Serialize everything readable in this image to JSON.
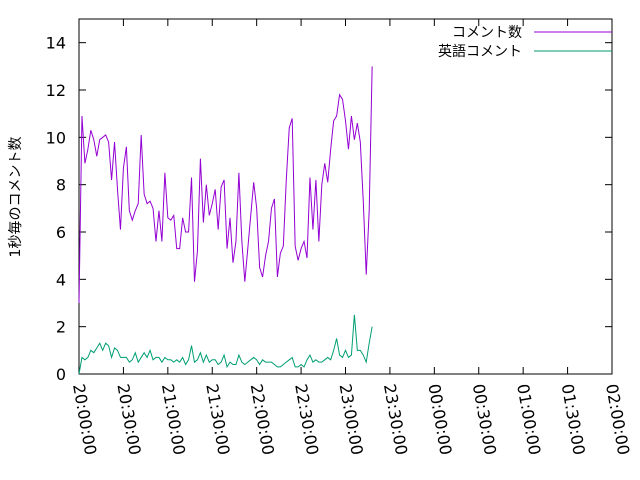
{
  "chart_data": {
    "type": "line",
    "ylabel": "1秒毎のコメント数",
    "xlabel": "",
    "title": "",
    "ylim": [
      0,
      15
    ],
    "xlim": [
      "20:00:00",
      "02:00:00"
    ],
    "y_ticks": [
      0,
      2,
      4,
      6,
      8,
      10,
      12,
      14
    ],
    "x_ticks": [
      "20:00:00",
      "20:30:00",
      "21:00:00",
      "21:30:00",
      "22:00:00",
      "22:30:00",
      "23:00:00",
      "23:30:00",
      "00:00:00",
      "00:30:00",
      "01:00:00",
      "01:30:00",
      "02:00:00"
    ],
    "grid": false,
    "legend_position": "top-right",
    "series": [
      {
        "name": "コメント数",
        "color": "#9400d3",
        "points": [
          [
            "20:00:00",
            3.0
          ],
          [
            "20:02:00",
            10.9
          ],
          [
            "20:04:00",
            8.9
          ],
          [
            "20:06:00",
            9.5
          ],
          [
            "20:08:00",
            10.3
          ],
          [
            "20:10:00",
            9.9
          ],
          [
            "20:12:00",
            9.2
          ],
          [
            "20:14:00",
            9.9
          ],
          [
            "20:18:00",
            10.1
          ],
          [
            "20:20:00",
            9.8
          ],
          [
            "20:22:00",
            8.2
          ],
          [
            "20:24:00",
            9.8
          ],
          [
            "20:26:00",
            7.8
          ],
          [
            "20:28:00",
            6.1
          ],
          [
            "20:30:00",
            8.7
          ],
          [
            "20:32:00",
            9.6
          ],
          [
            "20:34:00",
            6.9
          ],
          [
            "20:36:00",
            6.5
          ],
          [
            "20:38:00",
            6.9
          ],
          [
            "20:40:00",
            7.2
          ],
          [
            "20:42:00",
            10.1
          ],
          [
            "20:44:00",
            7.6
          ],
          [
            "20:46:00",
            7.2
          ],
          [
            "20:48:00",
            7.3
          ],
          [
            "20:50:00",
            7.0
          ],
          [
            "20:52:00",
            5.6
          ],
          [
            "20:54:00",
            6.9
          ],
          [
            "20:56:00",
            5.6
          ],
          [
            "20:58:00",
            8.5
          ],
          [
            "21:00:00",
            6.6
          ],
          [
            "21:02:00",
            6.5
          ],
          [
            "21:04:00",
            6.7
          ],
          [
            "21:06:00",
            5.3
          ],
          [
            "21:08:00",
            5.3
          ],
          [
            "21:10:00",
            6.6
          ],
          [
            "21:12:00",
            6.0
          ],
          [
            "21:14:00",
            6.0
          ],
          [
            "21:16:00",
            8.3
          ],
          [
            "21:18:00",
            3.9
          ],
          [
            "21:20:00",
            5.2
          ],
          [
            "21:22:00",
            9.1
          ],
          [
            "21:24:00",
            6.4
          ],
          [
            "21:26:00",
            8.0
          ],
          [
            "21:28:00",
            6.7
          ],
          [
            "21:30:00",
            7.2
          ],
          [
            "21:32:00",
            7.8
          ],
          [
            "21:34:00",
            6.1
          ],
          [
            "21:36:00",
            7.9
          ],
          [
            "21:38:00",
            8.2
          ],
          [
            "21:40:00",
            5.3
          ],
          [
            "21:42:00",
            6.6
          ],
          [
            "21:44:00",
            4.7
          ],
          [
            "21:46:00",
            5.6
          ],
          [
            "21:48:00",
            8.5
          ],
          [
            "21:50:00",
            5.6
          ],
          [
            "21:52:00",
            3.9
          ],
          [
            "21:54:00",
            5.3
          ],
          [
            "21:56:00",
            6.7
          ],
          [
            "21:58:00",
            8.1
          ],
          [
            "22:00:00",
            7.0
          ],
          [
            "22:02:00",
            4.5
          ],
          [
            "22:04:00",
            4.1
          ],
          [
            "22:06:00",
            5.0
          ],
          [
            "22:08:00",
            5.6
          ],
          [
            "22:10:00",
            7.0
          ],
          [
            "22:12:00",
            7.4
          ],
          [
            "22:14:00",
            4.1
          ],
          [
            "22:16:00",
            5.1
          ],
          [
            "22:18:00",
            5.4
          ],
          [
            "22:20:00",
            8.2
          ],
          [
            "22:22:00",
            10.4
          ],
          [
            "22:24:00",
            10.8
          ],
          [
            "22:26:00",
            5.4
          ],
          [
            "22:28:00",
            4.8
          ],
          [
            "22:30:00",
            5.3
          ],
          [
            "22:32:00",
            5.6
          ],
          [
            "22:34:00",
            4.9
          ],
          [
            "22:36:00",
            8.3
          ],
          [
            "22:38:00",
            6.1
          ],
          [
            "22:40:00",
            8.2
          ],
          [
            "22:42:00",
            5.6
          ],
          [
            "22:44:00",
            8.0
          ],
          [
            "22:46:00",
            8.9
          ],
          [
            "22:48:00",
            8.1
          ],
          [
            "22:50:00",
            9.5
          ],
          [
            "22:52:00",
            10.7
          ],
          [
            "22:54:00",
            10.9
          ],
          [
            "22:56:00",
            11.8
          ],
          [
            "22:58:00",
            11.6
          ],
          [
            "23:00:00",
            10.7
          ],
          [
            "23:02:00",
            9.5
          ],
          [
            "23:04:00",
            10.9
          ],
          [
            "23:06:00",
            9.9
          ],
          [
            "23:08:00",
            10.6
          ],
          [
            "23:10:00",
            9.8
          ],
          [
            "23:12:00",
            7.3
          ],
          [
            "23:14:00",
            4.2
          ],
          [
            "23:16:00",
            6.9
          ],
          [
            "23:18:00",
            13.0
          ]
        ]
      },
      {
        "name": "英語コメント",
        "color": "#009e73",
        "points": [
          [
            "20:00:00",
            0.0
          ],
          [
            "20:02:00",
            0.7
          ],
          [
            "20:04:00",
            0.6
          ],
          [
            "20:06:00",
            0.7
          ],
          [
            "20:08:00",
            1.0
          ],
          [
            "20:10:00",
            0.9
          ],
          [
            "20:12:00",
            1.1
          ],
          [
            "20:14:00",
            1.3
          ],
          [
            "20:16:00",
            1.0
          ],
          [
            "20:18:00",
            1.3
          ],
          [
            "20:20:00",
            1.2
          ],
          [
            "20:22:00",
            0.7
          ],
          [
            "20:24:00",
            1.1
          ],
          [
            "20:26:00",
            1.0
          ],
          [
            "20:28:00",
            0.7
          ],
          [
            "20:30:00",
            0.7
          ],
          [
            "20:32:00",
            0.7
          ],
          [
            "20:34:00",
            0.5
          ],
          [
            "20:36:00",
            0.6
          ],
          [
            "20:38:00",
            0.9
          ],
          [
            "20:40:00",
            0.5
          ],
          [
            "20:42:00",
            0.7
          ],
          [
            "20:44:00",
            0.9
          ],
          [
            "20:46:00",
            0.7
          ],
          [
            "20:48:00",
            1.0
          ],
          [
            "20:50:00",
            0.6
          ],
          [
            "20:52:00",
            0.7
          ],
          [
            "20:54:00",
            0.7
          ],
          [
            "20:56:00",
            0.5
          ],
          [
            "20:58:00",
            0.7
          ],
          [
            "21:00:00",
            0.6
          ],
          [
            "21:02:00",
            0.6
          ],
          [
            "21:04:00",
            0.5
          ],
          [
            "21:06:00",
            0.6
          ],
          [
            "21:08:00",
            0.5
          ],
          [
            "21:10:00",
            0.7
          ],
          [
            "21:12:00",
            0.4
          ],
          [
            "21:14:00",
            0.6
          ],
          [
            "21:16:00",
            1.2
          ],
          [
            "21:18:00",
            0.5
          ],
          [
            "21:20:00",
            0.6
          ],
          [
            "21:22:00",
            0.9
          ],
          [
            "21:24:00",
            0.5
          ],
          [
            "21:26:00",
            0.8
          ],
          [
            "21:28:00",
            0.5
          ],
          [
            "21:30:00",
            0.6
          ],
          [
            "21:32:00",
            0.6
          ],
          [
            "21:34:00",
            0.4
          ],
          [
            "21:36:00",
            0.5
          ],
          [
            "21:38:00",
            0.8
          ],
          [
            "21:40:00",
            0.3
          ],
          [
            "21:42:00",
            0.5
          ],
          [
            "21:44:00",
            0.4
          ],
          [
            "21:46:00",
            0.4
          ],
          [
            "21:48:00",
            0.8
          ],
          [
            "21:50:00",
            0.5
          ],
          [
            "21:52:00",
            0.4
          ],
          [
            "21:54:00",
            0.5
          ],
          [
            "21:56:00",
            0.6
          ],
          [
            "21:58:00",
            0.7
          ],
          [
            "22:00:00",
            0.6
          ],
          [
            "22:02:00",
            0.4
          ],
          [
            "22:04:00",
            0.6
          ],
          [
            "22:06:00",
            0.5
          ],
          [
            "22:08:00",
            0.5
          ],
          [
            "22:10:00",
            0.5
          ],
          [
            "22:12:00",
            0.4
          ],
          [
            "22:14:00",
            0.3
          ],
          [
            "22:16:00",
            0.3
          ],
          [
            "22:18:00",
            0.4
          ],
          [
            "22:20:00",
            0.5
          ],
          [
            "22:22:00",
            0.6
          ],
          [
            "22:24:00",
            0.7
          ],
          [
            "22:26:00",
            0.3
          ],
          [
            "22:28:00",
            0.3
          ],
          [
            "22:30:00",
            0.4
          ],
          [
            "22:32:00",
            0.3
          ],
          [
            "22:34:00",
            0.6
          ],
          [
            "22:36:00",
            0.8
          ],
          [
            "22:38:00",
            0.5
          ],
          [
            "22:40:00",
            0.6
          ],
          [
            "22:42:00",
            0.5
          ],
          [
            "22:44:00",
            0.5
          ],
          [
            "22:46:00",
            0.6
          ],
          [
            "22:48:00",
            0.7
          ],
          [
            "22:50:00",
            0.6
          ],
          [
            "22:52:00",
            1.0
          ],
          [
            "22:54:00",
            1.5
          ],
          [
            "22:56:00",
            0.8
          ],
          [
            "22:58:00",
            0.7
          ],
          [
            "23:00:00",
            1.0
          ],
          [
            "23:02:00",
            0.7
          ],
          [
            "23:04:00",
            0.8
          ],
          [
            "23:06:00",
            2.5
          ],
          [
            "23:08:00",
            1.0
          ],
          [
            "23:10:00",
            1.0
          ],
          [
            "23:12:00",
            0.8
          ],
          [
            "23:14:00",
            0.5
          ],
          [
            "23:16:00",
            1.3
          ],
          [
            "23:18:00",
            2.0
          ]
        ]
      }
    ]
  }
}
